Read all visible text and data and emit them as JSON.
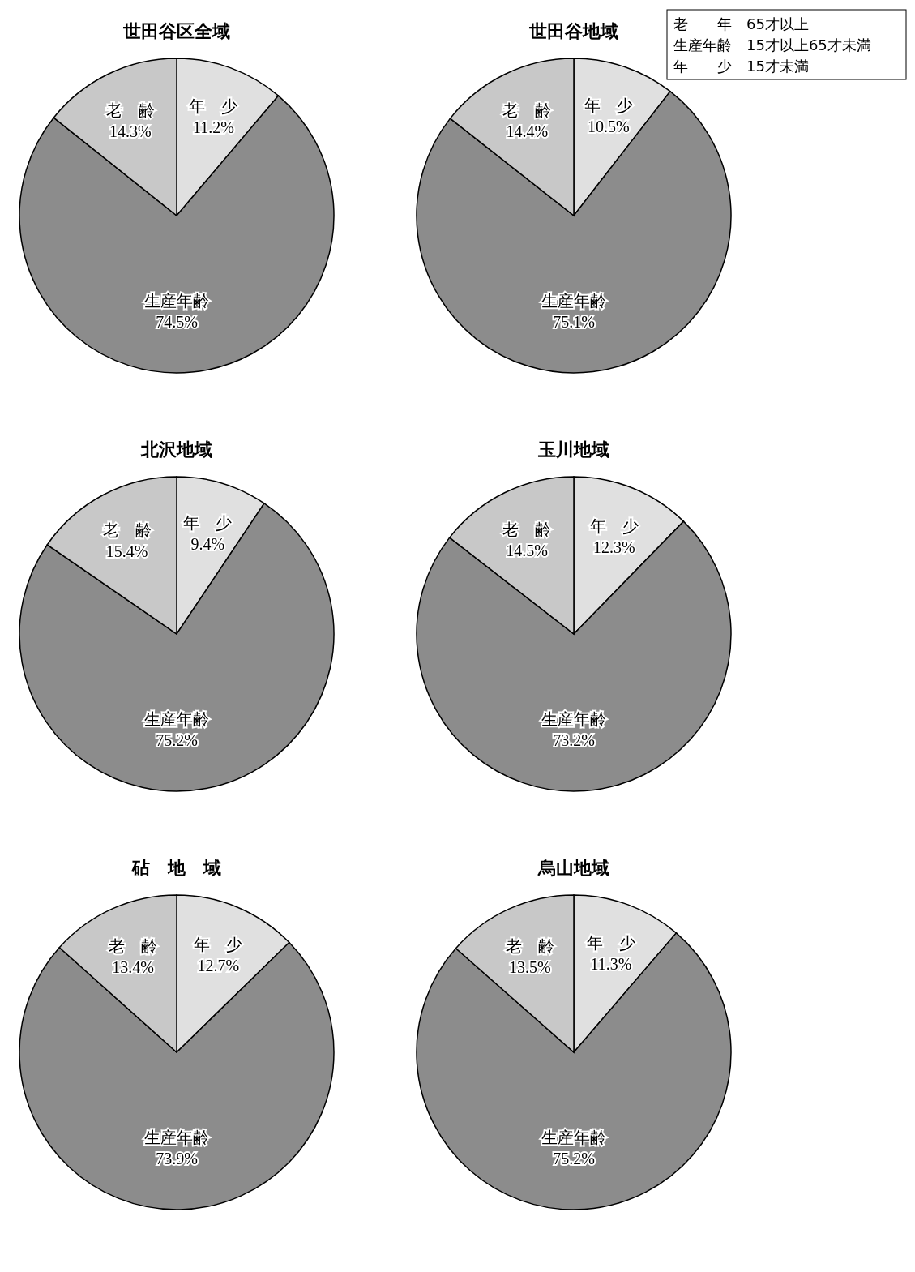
{
  "chart_data": [
    {
      "type": "pie",
      "title": "世田谷区全域",
      "categories": [
        "年　少",
        "生産年齢",
        "老　齢"
      ],
      "values": [
        11.2,
        74.5,
        14.3
      ],
      "value_labels": [
        "11.2%",
        "74.5%",
        "14.3%"
      ],
      "colors": [
        "#e0e0e0",
        "#8c8c8c",
        "#c8c8c8"
      ]
    },
    {
      "type": "pie",
      "title": "世田谷地域",
      "categories": [
        "年　少",
        "生産年齢",
        "老　齢"
      ],
      "values": [
        10.5,
        75.1,
        14.4
      ],
      "value_labels": [
        "10.5%",
        "75.1%",
        "14.4%"
      ],
      "colors": [
        "#e0e0e0",
        "#8c8c8c",
        "#c8c8c8"
      ],
      "annotations": [
        "老　　年　65才以上",
        "生産年齢　15才以上65才未満",
        "年　　少　15才未満"
      ]
    },
    {
      "type": "pie",
      "title": "北沢地域",
      "categories": [
        "年　少",
        "生産年齢",
        "老　齢"
      ],
      "values": [
        9.4,
        75.2,
        15.4
      ],
      "value_labels": [
        "9.4%",
        "75.2%",
        "15.4%"
      ],
      "colors": [
        "#e0e0e0",
        "#8c8c8c",
        "#c8c8c8"
      ]
    },
    {
      "type": "pie",
      "title": "玉川地域",
      "categories": [
        "年　少",
        "生産年齢",
        "老　齢"
      ],
      "values": [
        12.3,
        73.2,
        14.5
      ],
      "value_labels": [
        "12.3%",
        "73.2%",
        "14.5%"
      ],
      "colors": [
        "#e0e0e0",
        "#8c8c8c",
        "#c8c8c8"
      ]
    },
    {
      "type": "pie",
      "title": "砧　地　域",
      "categories": [
        "年　少",
        "生産年齢",
        "老　齢"
      ],
      "values": [
        12.7,
        73.9,
        13.4
      ],
      "value_labels": [
        "12.7%",
        "73.9%",
        "13.4%"
      ],
      "colors": [
        "#e0e0e0",
        "#8c8c8c",
        "#c8c8c8"
      ]
    },
    {
      "type": "pie",
      "title": "烏山地域",
      "categories": [
        "年　少",
        "生産年齢",
        "老　齢"
      ],
      "values": [
        11.3,
        75.2,
        13.5
      ],
      "value_labels": [
        "11.3%",
        "75.2%",
        "13.5%"
      ],
      "colors": [
        "#e0e0e0",
        "#8c8c8c",
        "#c8c8c8"
      ]
    }
  ]
}
